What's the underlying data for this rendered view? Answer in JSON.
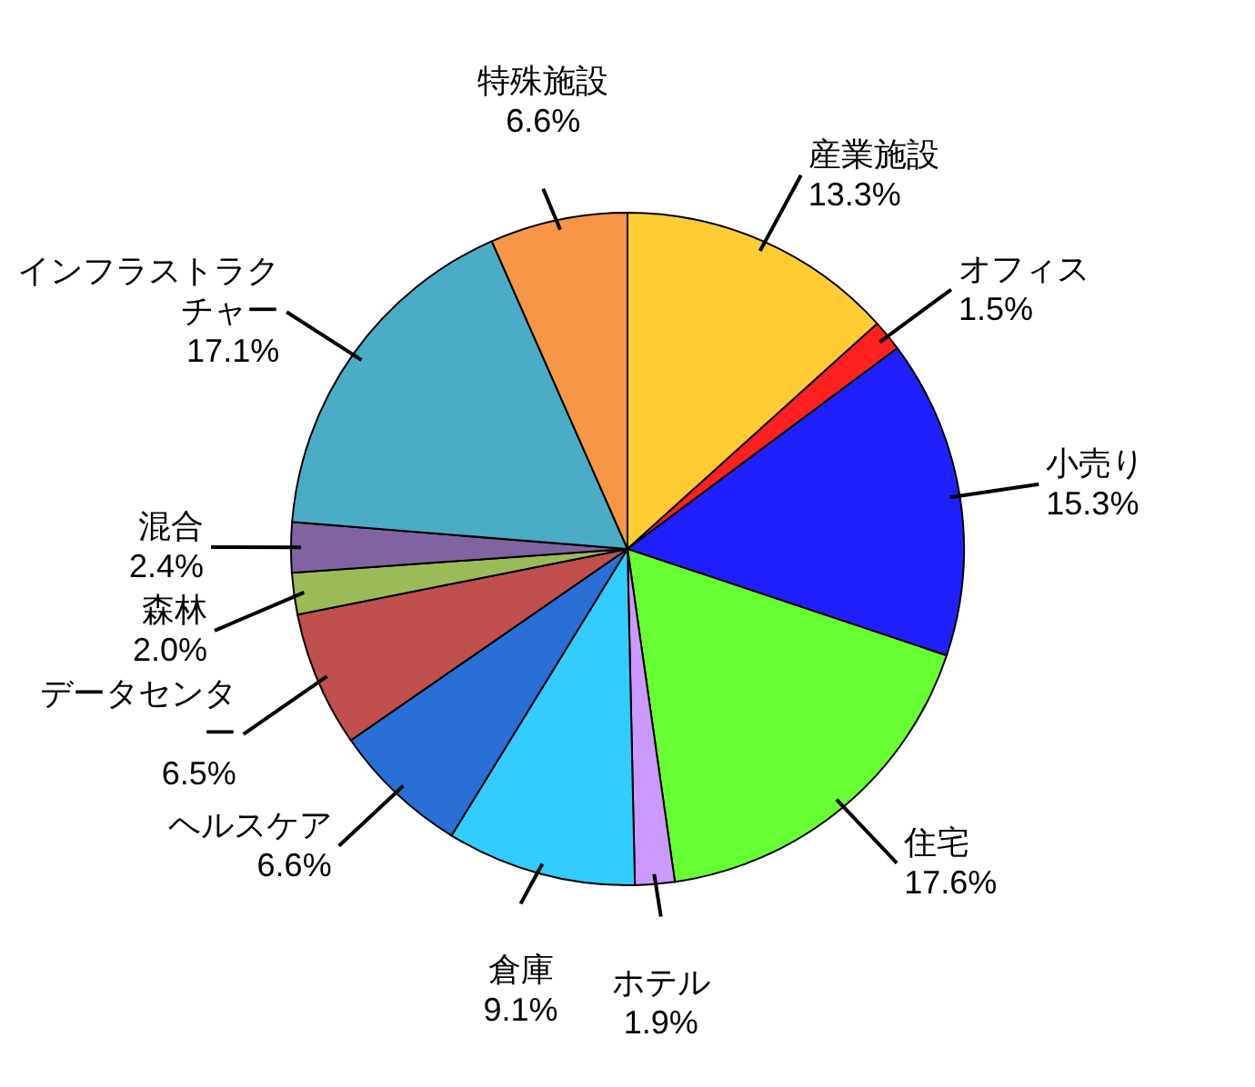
{
  "chart_data": {
    "type": "pie",
    "categories": [
      "産業施設",
      "オフィス",
      "小売り",
      "住宅",
      "ホテル",
      "倉庫",
      "ヘルスケア",
      "データセンター",
      "森林",
      "混合",
      "インフラストラクチャー",
      "特殊施設"
    ],
    "values": [
      13.3,
      1.5,
      15.3,
      17.6,
      1.9,
      9.1,
      6.6,
      6.5,
      2.0,
      2.4,
      17.1,
      6.6
    ],
    "value_labels": [
      "13.3%",
      "1.5%",
      "15.3%",
      "17.6%",
      "1.9%",
      "9.1%",
      "6.6%",
      "6.5%",
      "2.0%",
      "2.4%",
      "17.1%",
      "6.6%"
    ],
    "colors": [
      "#ffcc33",
      "#ff2020",
      "#2020ff",
      "#66ff33",
      "#cc99ff",
      "#33ccff",
      "#2a6fd6",
      "#c0504d",
      "#9bbb59",
      "#8064a2",
      "#4bacc6",
      "#f79646"
    ]
  }
}
